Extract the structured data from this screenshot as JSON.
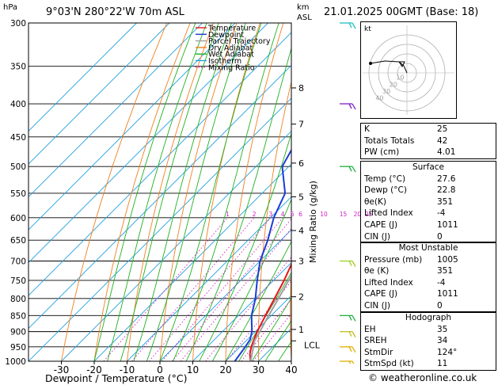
{
  "header": {
    "location": "9°03'N 280°22'W 70m ASL",
    "datetime": "21.01.2025 00GMT (Base: 18)",
    "hpa_unit": "hPa",
    "km_unit": "km",
    "asl_unit": "ASL"
  },
  "footer": {
    "credit": "© weatheronline.co.uk"
  },
  "chart_data": {
    "type": "line",
    "xlabel": "Dewpoint / Temperature (°C)",
    "ylabel": "hPa",
    "y2label": "Mixing Ratio (g/kg)",
    "xlim": [
      -40,
      40
    ],
    "ylim": [
      1000,
      300
    ],
    "x_ticks": [
      -30,
      -20,
      -10,
      0,
      10,
      20,
      30,
      40
    ],
    "y_ticks": [
      300,
      350,
      400,
      450,
      500,
      550,
      600,
      650,
      700,
      750,
      800,
      850,
      900,
      950,
      1000
    ],
    "km_ticks": [
      {
        "km": "1",
        "p": 893
      },
      {
        "km": "2",
        "p": 795
      },
      {
        "km": "3",
        "p": 700
      },
      {
        "km": "4",
        "p": 628
      },
      {
        "km": "5",
        "p": 557
      },
      {
        "km": "6",
        "p": 494
      },
      {
        "km": "7",
        "p": 430
      },
      {
        "km": "8",
        "p": 378
      }
    ],
    "lcl": {
      "label": "LCL",
      "p": 930
    },
    "mixing_ratio_labels": [
      "1",
      "2",
      "3",
      "4",
      "5",
      "6",
      "10",
      "15",
      "20",
      "25"
    ],
    "mixing_ratio_values": [
      1,
      2,
      3,
      4,
      5,
      6,
      10,
      15,
      20,
      25
    ],
    "legend": [
      {
        "name": "Temperature",
        "color": "#e8141c",
        "dash": false
      },
      {
        "name": "Dewpoint",
        "color": "#1a3cd8",
        "dash": false
      },
      {
        "name": "Parcel Trajectory",
        "color": "#a0a0a0",
        "dash": false
      },
      {
        "name": "Dry Adiabat",
        "color": "#f08020",
        "dash": false
      },
      {
        "name": "Wet Adiabat",
        "color": "#20b020",
        "dash": false
      },
      {
        "name": "Isotherm",
        "color": "#20a0e0",
        "dash": false
      },
      {
        "name": "Mixing Ratio",
        "color": "#d020c0",
        "dash": true
      }
    ],
    "series": [
      {
        "name": "Temperature",
        "color": "#e8141c",
        "points": [
          [
            1000,
            27.6
          ],
          [
            975,
            25.2
          ],
          [
            950,
            23.4
          ],
          [
            925,
            22.0
          ],
          [
            900,
            20.6
          ],
          [
            850,
            18.2
          ],
          [
            800,
            15.8
          ],
          [
            750,
            13.2
          ],
          [
            700,
            10.0
          ],
          [
            650,
            7.0
          ],
          [
            600,
            3.8
          ],
          [
            550,
            0.0
          ],
          [
            500,
            -4.2
          ],
          [
            450,
            -9.0
          ],
          [
            400,
            -14.6
          ],
          [
            350,
            -21.2
          ],
          [
            300,
            -29.0
          ]
        ]
      },
      {
        "name": "Dewpoint",
        "color": "#1a3cd8",
        "points": [
          [
            1000,
            22.8
          ],
          [
            950,
            21.6
          ],
          [
            925,
            20.8
          ],
          [
            900,
            19.0
          ],
          [
            850,
            14.0
          ],
          [
            800,
            10.0
          ],
          [
            750,
            5.0
          ],
          [
            700,
            0.0
          ],
          [
            650,
            -4.0
          ],
          [
            600,
            -9.0
          ],
          [
            550,
            -13.0
          ],
          [
            500,
            -22.0
          ],
          [
            450,
            -26.0
          ],
          [
            400,
            -29.0
          ],
          [
            350,
            -47.0
          ],
          [
            300,
            -60.0
          ]
        ]
      },
      {
        "name": "Parcel Trajectory",
        "color": "#a0a0a0",
        "points": [
          [
            1000,
            27.6
          ],
          [
            930,
            22.6
          ],
          [
            900,
            21.4
          ],
          [
            850,
            19.2
          ],
          [
            800,
            17.0
          ],
          [
            750,
            14.6
          ],
          [
            700,
            12.0
          ],
          [
            650,
            9.2
          ],
          [
            600,
            6.2
          ],
          [
            550,
            2.8
          ],
          [
            500,
            -1.0
          ],
          [
            450,
            -5.4
          ],
          [
            400,
            -10.6
          ],
          [
            350,
            -17.0
          ],
          [
            300,
            -25.0
          ]
        ]
      }
    ]
  },
  "indices": [
    {
      "label": "K",
      "value": "25"
    },
    {
      "label": "Totals Totals",
      "value": "42"
    },
    {
      "label": "PW (cm)",
      "value": "4.01"
    }
  ],
  "surface": {
    "title": "Surface",
    "rows": [
      {
        "label": "Temp (°C)",
        "value": "27.6"
      },
      {
        "label": "Dewp (°C)",
        "value": "22.8"
      },
      {
        "label": "θe(K)",
        "value": "351"
      },
      {
        "label": "Lifted Index",
        "value": "-4"
      },
      {
        "label": "CAPE (J)",
        "value": "1011"
      },
      {
        "label": "CIN (J)",
        "value": "0"
      }
    ]
  },
  "most_unstable": {
    "title": "Most Unstable",
    "rows": [
      {
        "label": "Pressure (mb)",
        "value": "1005"
      },
      {
        "label": "θe (K)",
        "value": "351"
      },
      {
        "label": "Lifted Index",
        "value": "-4"
      },
      {
        "label": "CAPE (J)",
        "value": "1011"
      },
      {
        "label": "CIN (J)",
        "value": "0"
      }
    ]
  },
  "hodograph": {
    "title": "Hodograph",
    "kt_label": "kt",
    "ring_labels": [
      "10",
      "20",
      "30",
      "40"
    ],
    "rows": [
      {
        "label": "EH",
        "value": "35"
      },
      {
        "label": "SREH",
        "value": "34"
      },
      {
        "label": "StmDir",
        "value": "124°"
      },
      {
        "label": "StmSpd (kt)",
        "value": "11"
      }
    ]
  },
  "wind_barbs": [
    {
      "p": 300,
      "color": "#20c0c0"
    },
    {
      "p": 400,
      "color": "#8020c0"
    },
    {
      "p": 500,
      "color": "#20b040"
    },
    {
      "p": 700,
      "color": "#a0d020"
    },
    {
      "p": 850,
      "color": "#20b040"
    },
    {
      "p": 900,
      "color": "#c0c020"
    },
    {
      "p": 950,
      "color": "#e0b000"
    },
    {
      "p": 1000,
      "color": "#e0b000"
    }
  ]
}
